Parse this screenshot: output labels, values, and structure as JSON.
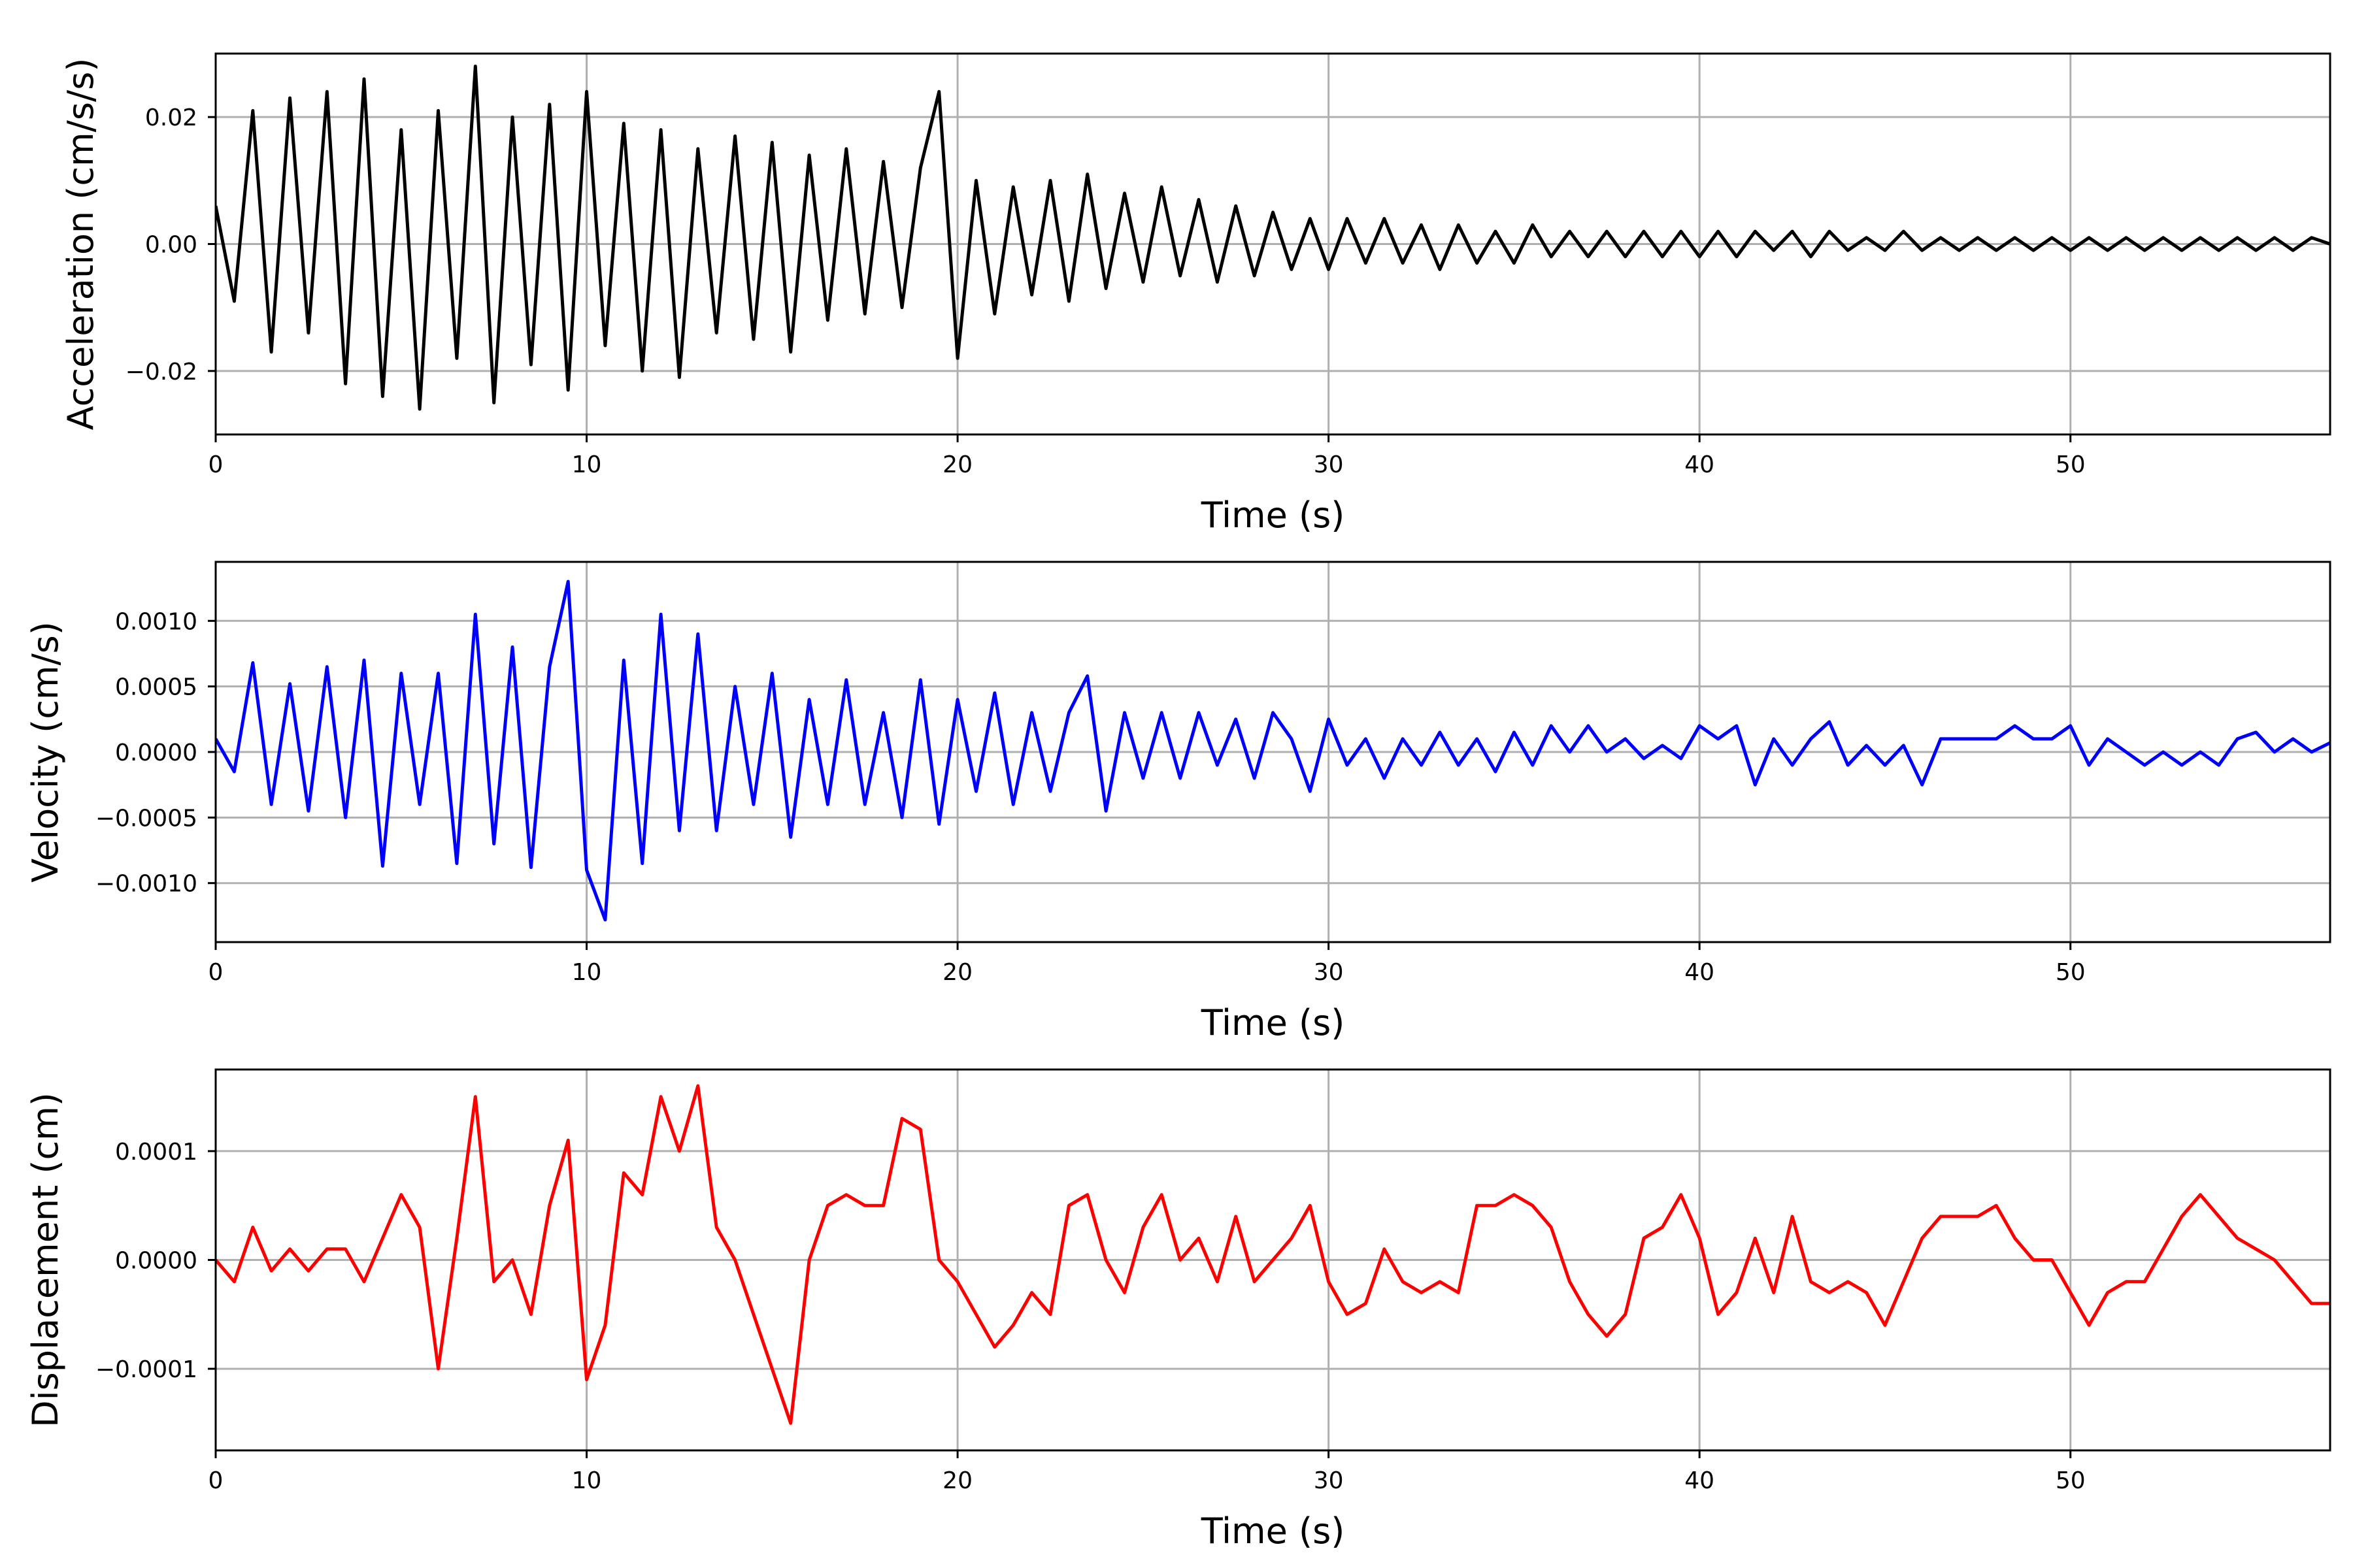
{
  "chart_data": [
    {
      "type": "line",
      "xlabel": "Time (s)",
      "ylabel": "Acceleration (cm/s/s)",
      "xlim": [
        0,
        57
      ],
      "ylim": [
        -0.03,
        0.03
      ],
      "x_ticks": [
        0,
        10,
        20,
        30,
        40,
        50
      ],
      "x_tick_labels": [
        "0",
        "10",
        "20",
        "30",
        "40",
        "50"
      ],
      "y_ticks": [
        -0.02,
        0.0,
        0.02
      ],
      "y_tick_labels": [
        "−0.02",
        "0.00",
        "0.02"
      ],
      "grid": true,
      "color": "#000000",
      "series": [
        {
          "x": [
            0,
            0.5,
            1,
            1.5,
            2,
            2.5,
            3,
            3.5,
            4,
            4.5,
            5,
            5.5,
            6,
            6.5,
            7,
            7.5,
            8,
            8.5,
            9,
            9.5,
            10,
            10.5,
            11,
            11.5,
            12,
            12.5,
            13,
            13.5,
            14,
            14.5,
            15,
            15.5,
            16,
            16.5,
            17,
            17.5,
            18,
            18.5,
            19,
            19.5,
            20,
            20.5,
            21,
            21.5,
            22,
            22.5,
            23,
            23.5,
            24,
            24.5,
            25,
            25.5,
            26,
            26.5,
            27,
            27.5,
            28,
            28.5,
            29,
            29.5,
            30,
            30.5,
            31,
            31.5,
            32,
            32.5,
            33,
            33.5,
            34,
            34.5,
            35,
            35.5,
            36,
            36.5,
            37,
            37.5,
            38,
            38.5,
            39,
            39.5,
            40,
            40.5,
            41,
            41.5,
            42,
            42.5,
            43,
            43.5,
            44,
            44.5,
            45,
            45.5,
            46,
            46.5,
            47,
            47.5,
            48,
            48.5,
            49,
            49.5,
            50,
            50.5,
            51,
            51.5,
            52,
            52.5,
            53,
            53.5,
            54,
            54.5,
            55,
            55.5,
            56,
            56.5,
            57
          ],
          "y": [
            0.006,
            -0.009,
            0.021,
            -0.017,
            0.023,
            -0.014,
            0.024,
            -0.022,
            0.026,
            -0.024,
            0.018,
            -0.026,
            0.021,
            -0.018,
            0.028,
            -0.025,
            0.02,
            -0.019,
            0.022,
            -0.023,
            0.024,
            -0.016,
            0.019,
            -0.02,
            0.018,
            -0.021,
            0.015,
            -0.014,
            0.017,
            -0.015,
            0.016,
            -0.017,
            0.014,
            -0.012,
            0.015,
            -0.011,
            0.013,
            -0.01,
            0.012,
            0.024,
            -0.018,
            0.01,
            -0.011,
            0.009,
            -0.008,
            0.01,
            -0.009,
            0.011,
            -0.007,
            0.008,
            -0.006,
            0.009,
            -0.005,
            0.007,
            -0.006,
            0.006,
            -0.005,
            0.005,
            -0.004,
            0.004,
            -0.004,
            0.004,
            -0.003,
            0.004,
            -0.003,
            0.003,
            -0.004,
            0.003,
            -0.003,
            0.002,
            -0.003,
            0.003,
            -0.002,
            0.002,
            -0.002,
            0.002,
            -0.002,
            0.002,
            -0.002,
            0.002,
            -0.002,
            0.002,
            -0.002,
            0.002,
            -0.001,
            0.002,
            -0.002,
            0.002,
            -0.001,
            0.001,
            -0.001,
            0.002,
            -0.001,
            0.001,
            -0.001,
            0.001,
            -0.001,
            0.001,
            -0.001,
            0.001,
            -0.001,
            0.001,
            -0.001,
            0.001,
            -0.001,
            0.001,
            -0.001,
            0.001,
            -0.001,
            0.001,
            -0.001,
            0.001,
            -0.001,
            0.001,
            0.0
          ]
        }
      ]
    },
    {
      "type": "line",
      "xlabel": "Time (s)",
      "ylabel": "Velocity (cm/s)",
      "xlim": [
        0,
        57
      ],
      "ylim": [
        -0.00145,
        0.00145
      ],
      "x_ticks": [
        0,
        10,
        20,
        30,
        40,
        50
      ],
      "x_tick_labels": [
        "0",
        "10",
        "20",
        "30",
        "40",
        "50"
      ],
      "y_ticks": [
        -0.001,
        -0.0005,
        0.0,
        0.0005,
        0.001
      ],
      "y_tick_labels": [
        "−0.0010",
        "−0.0005",
        "0.0000",
        "0.0005",
        "0.0010"
      ],
      "grid": true,
      "color": "#0000ff",
      "series": [
        {
          "x": [
            0,
            0.5,
            1,
            1.5,
            2,
            2.5,
            3,
            3.5,
            4,
            4.5,
            5,
            5.5,
            6,
            6.5,
            7,
            7.5,
            8,
            8.5,
            9,
            9.5,
            10,
            10.5,
            11,
            11.5,
            12,
            12.5,
            13,
            13.5,
            14,
            14.5,
            15,
            15.5,
            16,
            16.5,
            17,
            17.5,
            18,
            18.5,
            19,
            19.5,
            20,
            20.5,
            21,
            21.5,
            22,
            22.5,
            23,
            23.5,
            24,
            24.5,
            25,
            25.5,
            26,
            26.5,
            27,
            27.5,
            28,
            28.5,
            29,
            29.5,
            30,
            30.5,
            31,
            31.5,
            32,
            32.5,
            33,
            33.5,
            34,
            34.5,
            35,
            35.5,
            36,
            36.5,
            37,
            37.5,
            38,
            38.5,
            39,
            39.5,
            40,
            40.5,
            41,
            41.5,
            42,
            42.5,
            43,
            43.5,
            44,
            44.5,
            45,
            45.5,
            46,
            46.5,
            47,
            47.5,
            48,
            48.5,
            49,
            49.5,
            50,
            50.5,
            51,
            51.5,
            52,
            52.5,
            53,
            53.5,
            54,
            54.5,
            55,
            55.5,
            56,
            56.5,
            57
          ],
          "y": [
            0.0001,
            -0.00015,
            0.00068,
            -0.0004,
            0.00052,
            -0.00045,
            0.00065,
            -0.0005,
            0.0007,
            -0.00087,
            0.0006,
            -0.0004,
            0.0006,
            -0.00085,
            0.00105,
            -0.0007,
            0.0008,
            -0.00088,
            0.00065,
            0.0013,
            -0.0009,
            -0.00128,
            0.0007,
            -0.00085,
            0.00105,
            -0.0006,
            0.0009,
            -0.0006,
            0.0005,
            -0.0004,
            0.0006,
            -0.00065,
            0.0004,
            -0.0004,
            0.00055,
            -0.0004,
            0.0003,
            -0.0005,
            0.00055,
            -0.00055,
            0.0004,
            -0.0003,
            0.00045,
            -0.0004,
            0.0003,
            -0.0003,
            0.0003,
            0.00058,
            -0.00045,
            0.0003,
            -0.0002,
            0.0003,
            -0.0002,
            0.0003,
            -0.0001,
            0.00025,
            -0.0002,
            0.0003,
            0.0001,
            -0.0003,
            0.00025,
            -0.0001,
            0.0001,
            -0.0002,
            0.0001,
            -0.0001,
            0.00015,
            -0.0001,
            0.0001,
            -0.00015,
            0.00015,
            -0.0001,
            0.0002,
            0.0,
            0.0002,
            0.0,
            0.0001,
            -5e-05,
            5e-05,
            -5e-05,
            0.0002,
            0.0001,
            0.0002,
            -0.00025,
            0.0001,
            -0.0001,
            0.0001,
            0.00023,
            -0.0001,
            5e-05,
            -0.0001,
            5e-05,
            -0.00025,
            0.0001,
            0.0001,
            0.0001,
            0.0001,
            0.0002,
            0.0001,
            0.0001,
            0.0002,
            -0.0001,
            0.0001,
            0.0,
            -0.0001,
            0.0,
            -0.0001,
            0.0,
            -0.0001,
            0.0001,
            0.00015,
            0.0,
            0.0001,
            0.0,
            7e-05
          ]
        }
      ]
    },
    {
      "type": "line",
      "xlabel": "Time (s)",
      "ylabel": "Displacement (cm)",
      "xlim": [
        0,
        57
      ],
      "ylim": [
        -0.000175,
        0.000175
      ],
      "x_ticks": [
        0,
        10,
        20,
        30,
        40,
        50
      ],
      "x_tick_labels": [
        "0",
        "10",
        "20",
        "30",
        "40",
        "50"
      ],
      "y_ticks": [
        -0.0001,
        0.0,
        0.0001
      ],
      "y_tick_labels": [
        "−0.0001",
        "0.0000",
        "0.0001"
      ],
      "grid": true,
      "color": "#ff0000",
      "series": [
        {
          "x": [
            0,
            0.5,
            1,
            1.5,
            2,
            2.5,
            3,
            3.5,
            4,
            4.5,
            5,
            5.5,
            6,
            6.5,
            7,
            7.5,
            8,
            8.5,
            9,
            9.5,
            10,
            10.5,
            11,
            11.5,
            12,
            12.5,
            13,
            13.5,
            14,
            14.5,
            15,
            15.5,
            16,
            16.5,
            17,
            17.5,
            18,
            18.5,
            19,
            19.5,
            20,
            20.5,
            21,
            21.5,
            22,
            22.5,
            23,
            23.5,
            24,
            24.5,
            25,
            25.5,
            26,
            26.5,
            27,
            27.5,
            28,
            28.5,
            29,
            29.5,
            30,
            30.5,
            31,
            31.5,
            32,
            32.5,
            33,
            33.5,
            34,
            34.5,
            35,
            35.5,
            36,
            36.5,
            37,
            37.5,
            38,
            38.5,
            39,
            39.5,
            40,
            40.5,
            41,
            41.5,
            42,
            42.5,
            43,
            43.5,
            44,
            44.5,
            45,
            45.5,
            46,
            46.5,
            47,
            47.5,
            48,
            48.5,
            49,
            49.5,
            50,
            50.5,
            51,
            51.5,
            52,
            52.5,
            53,
            53.5,
            54,
            54.5,
            55,
            55.5,
            56,
            56.5,
            57
          ],
          "y": [
            0.0,
            -2e-05,
            3e-05,
            -1e-05,
            1e-05,
            -1e-05,
            1e-05,
            1e-05,
            -2e-05,
            2e-05,
            6e-05,
            3e-05,
            -0.0001,
            2e-05,
            0.00015,
            -2e-05,
            0.0,
            -5e-05,
            5e-05,
            0.00011,
            -0.00011,
            -6e-05,
            8e-05,
            6e-05,
            0.00015,
            0.0001,
            0.00016,
            3e-05,
            0.0,
            -5e-05,
            -0.0001,
            -0.00015,
            0.0,
            5e-05,
            6e-05,
            5e-05,
            5e-05,
            0.00013,
            0.00012,
            0.0,
            -2e-05,
            -5e-05,
            -8e-05,
            -6e-05,
            -3e-05,
            -5e-05,
            5e-05,
            6e-05,
            0.0,
            -3e-05,
            3e-05,
            6e-05,
            0.0,
            2e-05,
            -2e-05,
            4e-05,
            -2e-05,
            0.0,
            2e-05,
            5e-05,
            -2e-05,
            -5e-05,
            -4e-05,
            1e-05,
            -2e-05,
            -3e-05,
            -2e-05,
            -3e-05,
            5e-05,
            5e-05,
            6e-05,
            5e-05,
            3e-05,
            -2e-05,
            -5e-05,
            -7e-05,
            -5e-05,
            2e-05,
            3e-05,
            6e-05,
            2e-05,
            -5e-05,
            -3e-05,
            2e-05,
            -3e-05,
            4e-05,
            -2e-05,
            -3e-05,
            -2e-05,
            -3e-05,
            -6e-05,
            -2e-05,
            2e-05,
            4e-05,
            4e-05,
            4e-05,
            5e-05,
            2e-05,
            0.0,
            0.0,
            -3e-05,
            -6e-05,
            -3e-05,
            -2e-05,
            -2e-05,
            1e-05,
            4e-05,
            6e-05,
            4e-05,
            2e-05,
            1e-05,
            0.0,
            -2e-05,
            -4e-05,
            -4e-05
          ]
        }
      ]
    }
  ]
}
